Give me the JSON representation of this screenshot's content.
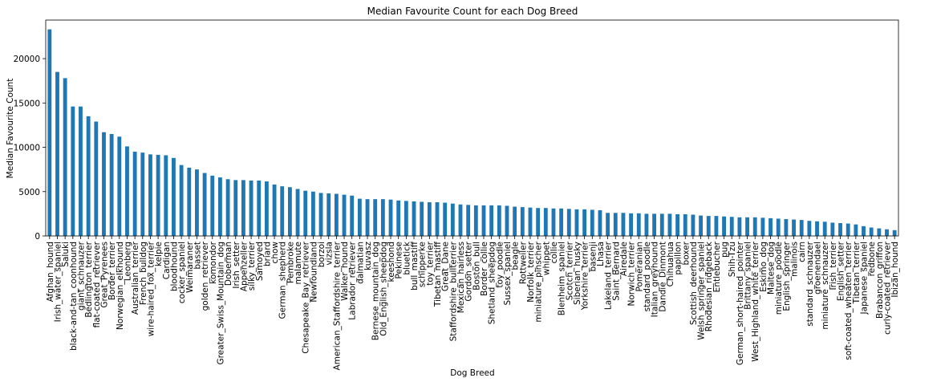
{
  "chart_data": {
    "type": "bar",
    "title": "Median Favourite Count for each Dog Breed",
    "xlabel": "Dog Breed",
    "ylabel": "Median Favourite Count",
    "color": "#1f77b4",
    "categories": [
      "Afghan_hound",
      "Irish_water_spaniel",
      "Saluki",
      "black-and-tan_coonhound",
      "giant_schnauzer",
      "Bedlington_terrier",
      "flat-coated_retriever",
      "Great_Pyrenees",
      "Border_terrier",
      "Norwegian_elkhound",
      "Leonberg",
      "Australian_terrier",
      "French_bulldog",
      "wire-haired_fox_terrier",
      "kelpie",
      "Cardigan",
      "bloodhound",
      "cocker_spaniel",
      "Weimaraner",
      "basset",
      "golden_retriever",
      "komondor",
      "Greater_Swiss_Mountain_dog",
      "Doberman",
      "Irish_setter",
      "Appenzeller",
      "silky_terrier",
      "Samoyed",
      "briard",
      "chow",
      "German_shepherd",
      "Pembroke",
      "malamute",
      "Chesapeake_Bay_retriever",
      "Newfoundland",
      "borzoi",
      "vizsla",
      "American_Staffordshire_terrier",
      "Walker_hound",
      "Labrador_retriever",
      "dalmatian",
      "kuvasz",
      "Bernese_mountain_dog",
      "Old_English_sheepdog",
      "keeshond",
      "Pekinese",
      "bluetick",
      "bull_mastiff",
      "schipperke",
      "toy_terrier",
      "Tibetan_mastiff",
      "Great_Dane",
      "Staffordshire_bullterrier",
      "Mexican_hairless",
      "Gordon_setter",
      "Boston_bull",
      "Border_collie",
      "Shetland_sheepdog",
      "toy_poodle",
      "Sussex_spaniel",
      "beagle",
      "Rottweiler",
      "Norfolk_terrier",
      "miniature_pinscher",
      "whippet",
      "collie",
      "Blenheim_spaniel",
      "Scotch_terrier",
      "Siberian_husky",
      "Yorkshire_terrier",
      "basenji",
      "Lhasa",
      "Lakeland_terrier",
      "Saint_Bernard",
      "Airedale",
      "Norwich_terrier",
      "Pomeranian",
      "standard_poodle",
      "Italian_greyhound",
      "Dandie_Dinmont",
      "Chihuahua",
      "papillon",
      "boxer",
      "Scottish_deerhound",
      "Welsh_springer_spaniel",
      "Rhodesian_ridgeback",
      "Entlebucher",
      "pug",
      "Shih-Tzu",
      "German_short-haired_pointer",
      "Brittany_spaniel",
      "West_Highland_white_terrier",
      "Eskimo_dog",
      "Maltese_dog",
      "miniature_poodle",
      "English_springer",
      "malinois",
      "cairn",
      "standard_schnauzer",
      "groenendael",
      "miniature_schnauzer",
      "Irish_terrier",
      "English_setter",
      "soft-coated_wheaten_terrier",
      "Tibetan_terrier",
      "Japanese_spaniel",
      "redbone",
      "Brabancon_griffon",
      "curly-coated_retriever",
      "Ibizan_hound"
    ],
    "values": [
      23300,
      18500,
      17800,
      14600,
      14600,
      13500,
      12900,
      11700,
      11500,
      11200,
      10100,
      9500,
      9400,
      9200,
      9150,
      9100,
      8800,
      8000,
      7700,
      7500,
      7100,
      6800,
      6600,
      6400,
      6300,
      6300,
      6250,
      6250,
      6150,
      5800,
      5600,
      5500,
      5300,
      5100,
      5000,
      4850,
      4800,
      4750,
      4650,
      4550,
      4200,
      4150,
      4150,
      4150,
      4100,
      4000,
      3950,
      3900,
      3850,
      3800,
      3800,
      3750,
      3650,
      3550,
      3500,
      3450,
      3450,
      3450,
      3450,
      3400,
      3300,
      3250,
      3200,
      3150,
      3150,
      3100,
      3100,
      3050,
      3000,
      3000,
      2950,
      2900,
      2600,
      2600,
      2600,
      2550,
      2550,
      2500,
      2500,
      2500,
      2500,
      2450,
      2450,
      2400,
      2300,
      2250,
      2250,
      2200,
      2150,
      2100,
      2100,
      2100,
      2050,
      2000,
      1950,
      1900,
      1850,
      1800,
      1700,
      1650,
      1600,
      1500,
      1450,
      1400,
      1300,
      1100,
      950,
      850,
      750,
      650
    ],
    "ylim": [
      0,
      24350
    ],
    "yticks": [
      0,
      5000,
      10000,
      15000,
      20000
    ]
  }
}
